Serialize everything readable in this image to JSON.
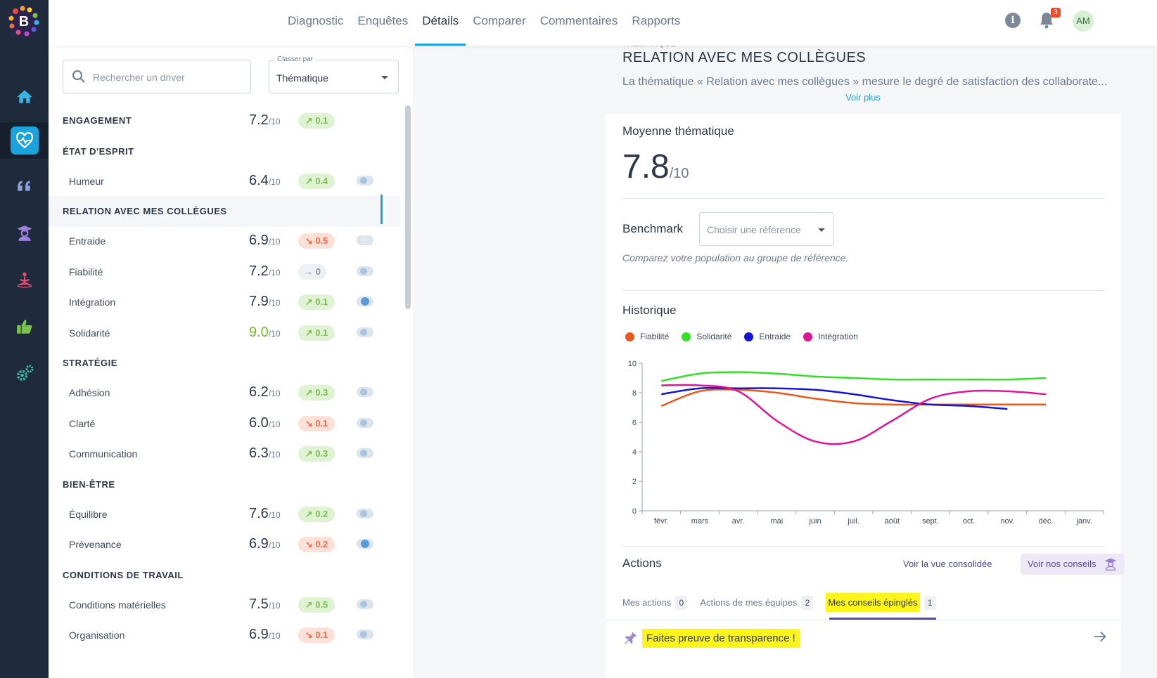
{
  "nav": {
    "items": [
      "Diagnostic",
      "Enquêtes",
      "Détails",
      "Comparer",
      "Commentaires",
      "Rapports"
    ],
    "active": "Détails",
    "notifications_count": "3",
    "user_initials": "AM",
    "info_glyph": "i"
  },
  "sidebar_icons": [
    "home-icon",
    "pulse-heart-icon",
    "quote-icon",
    "teacher-icon",
    "meditation-icon",
    "thumbs-up-icon",
    "gears-icon"
  ],
  "left": {
    "search_placeholder": "Rechercher un driver",
    "sort_label": "Classer par",
    "sort_value": "Thématique",
    "denominator": "/10",
    "rows": [
      {
        "kind": "cat",
        "name": "ENGAGEMENT",
        "score": "7.2",
        "trend": "up",
        "delta": "0.1"
      },
      {
        "kind": "cat",
        "name": "ÉTAT D'ESPRIT"
      },
      {
        "kind": "sub",
        "name": "Humeur",
        "score": "6.4",
        "trend": "up",
        "delta": "0.4",
        "toggle": "mid"
      },
      {
        "kind": "cat",
        "name": "RELATION AVEC MES COLLÈGUES",
        "selected": true
      },
      {
        "kind": "sub",
        "name": "Entraide",
        "score": "6.9",
        "trend": "down",
        "delta": "0.5",
        "toggle": "off"
      },
      {
        "kind": "sub",
        "name": "Fiabilité",
        "score": "7.2",
        "trend": "flat",
        "delta": "0",
        "toggle": "mid"
      },
      {
        "kind": "sub",
        "name": "Intégration",
        "score": "7.9",
        "trend": "up",
        "delta": "0.1",
        "toggle": "on"
      },
      {
        "kind": "sub",
        "name": "Solidarité",
        "score": "9.0",
        "trend": "up",
        "delta": "0.1",
        "toggle": "mid",
        "green": true
      },
      {
        "kind": "cat",
        "name": "STRATÉGIE"
      },
      {
        "kind": "sub",
        "name": "Adhésion",
        "score": "6.2",
        "trend": "up",
        "delta": "0.3",
        "toggle": "mid"
      },
      {
        "kind": "sub",
        "name": "Clarté",
        "score": "6.0",
        "trend": "down",
        "delta": "0.1",
        "toggle": "mid"
      },
      {
        "kind": "sub",
        "name": "Communication",
        "score": "6.3",
        "trend": "up",
        "delta": "0.3",
        "toggle": "mid"
      },
      {
        "kind": "cat",
        "name": "BIEN-ÊTRE"
      },
      {
        "kind": "sub",
        "name": "Équilibre",
        "score": "7.6",
        "trend": "up",
        "delta": "0.2",
        "toggle": "mid"
      },
      {
        "kind": "sub",
        "name": "Prévenance",
        "score": "6.9",
        "trend": "down",
        "delta": "0.2",
        "toggle": "on"
      },
      {
        "kind": "cat",
        "name": "CONDITIONS DE TRAVAIL"
      },
      {
        "kind": "sub",
        "name": "Conditions matérielles",
        "score": "7.5",
        "trend": "up",
        "delta": "0.5",
        "toggle": "mid"
      },
      {
        "kind": "sub",
        "name": "Organisation",
        "score": "6.9",
        "trend": "down",
        "delta": "0.1",
        "toggle": "mid"
      }
    ]
  },
  "right": {
    "caption": "THÉMATIQUE",
    "title": "RELATION AVEC MES COLLÈGUES",
    "description": "La thématique « Relation avec mes collègues » mesure le degré de satisfaction des collaborate...",
    "voir_plus": "Voir plus",
    "avg_title": "Moyenne thématique",
    "avg_value": "7.8",
    "avg_denominator": "/10",
    "benchmark_title": "Benchmark",
    "benchmark_placeholder": "Choisir une référence",
    "benchmark_note": "Comparez votre population au groupe de référence.",
    "history_title": "Historique",
    "actions_title": "Actions",
    "consolidated_link": "Voir la vue consolidée",
    "advice_button": "Voir nos conseils",
    "tabs": [
      {
        "label": "Mes actions",
        "count": "0"
      },
      {
        "label": "Actions de mes équipes",
        "count": "2"
      },
      {
        "label": "Mes conseils épinglés",
        "count": "1",
        "active": true
      }
    ],
    "pinned_tip": "Faites preuve de transparence !"
  },
  "colors": {
    "accent": "#1aa3dc",
    "up": "#7bbf4a",
    "down": "#ef6a45",
    "rail": "#1f2a3c"
  },
  "chart_data": {
    "type": "line",
    "title": "Historique",
    "categories": [
      "févr.",
      "mars",
      "avr.",
      "mai",
      "juin",
      "juil.",
      "août",
      "sept.",
      "oct.",
      "nov.",
      "déc.",
      "janv."
    ],
    "ylim": [
      0,
      10
    ],
    "yticks": [
      0,
      2,
      4,
      6,
      8,
      10
    ],
    "series": [
      {
        "name": "Fiabilité",
        "color": "#e8591a",
        "values": [
          7.1,
          8.1,
          8.2,
          8.0,
          7.6,
          7.3,
          7.2,
          7.2,
          7.2,
          7.2,
          7.2,
          null
        ]
      },
      {
        "name": "Solidarité",
        "color": "#33e024",
        "values": [
          8.8,
          9.3,
          9.4,
          9.3,
          9.1,
          9.0,
          8.9,
          8.9,
          8.9,
          8.9,
          9.0,
          null
        ]
      },
      {
        "name": "Entraide",
        "color": "#1414d6",
        "values": [
          7.9,
          8.3,
          8.3,
          8.3,
          8.2,
          7.9,
          7.5,
          7.2,
          7.1,
          6.9,
          null,
          null
        ]
      },
      {
        "name": "Intégration",
        "color": "#e0149a",
        "values": [
          8.5,
          8.5,
          8.1,
          6.1,
          4.7,
          4.7,
          6.1,
          7.6,
          8.1,
          8.1,
          7.9,
          null
        ]
      }
    ]
  }
}
